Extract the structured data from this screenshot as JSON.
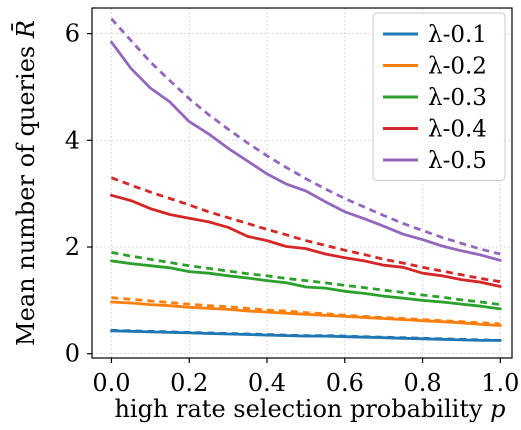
{
  "chart_data": {
    "type": "line",
    "xlabel": "high rate selection probability p",
    "xlabel_text": "high rate selection probability",
    "xlabel_var": "p",
    "ylabel": "Mean number of queries R̄",
    "ylabel_text": "Mean number of queries",
    "ylabel_var": "R̄",
    "xlim": [
      -0.05,
      1.03
    ],
    "ylim": [
      -0.08,
      6.48
    ],
    "x_ticks": [
      0.0,
      0.2,
      0.4,
      0.6,
      0.8,
      1.0
    ],
    "x_tick_labels": [
      "0.0",
      "0.2",
      "0.4",
      "0.6",
      "0.8",
      "1.0"
    ],
    "y_ticks": [
      0,
      2,
      4,
      6
    ],
    "y_tick_labels": [
      "0",
      "2",
      "4",
      "6"
    ],
    "grid": true,
    "legend_position": "top-right",
    "x": [
      0.0,
      0.05,
      0.1,
      0.15,
      0.2,
      0.25,
      0.3,
      0.35,
      0.4,
      0.45,
      0.5,
      0.55,
      0.6,
      0.65,
      0.7,
      0.75,
      0.8,
      0.85,
      0.9,
      0.95,
      1.0
    ],
    "series": [
      {
        "name": "λ-0.1",
        "color": "#1f77b4",
        "values": [
          0.43,
          0.42,
          0.41,
          0.4,
          0.39,
          0.38,
          0.37,
          0.36,
          0.35,
          0.34,
          0.33,
          0.33,
          0.32,
          0.31,
          0.3,
          0.29,
          0.28,
          0.27,
          0.26,
          0.25,
          0.25
        ],
        "dashed_values": [
          0.44,
          0.43,
          0.42,
          0.41,
          0.4,
          0.39,
          0.38,
          0.37,
          0.36,
          0.35,
          0.34,
          0.34,
          0.33,
          0.32,
          0.31,
          0.3,
          0.29,
          0.28,
          0.27,
          0.26,
          0.25
        ]
      },
      {
        "name": "λ-0.2",
        "color": "#ff7f0e",
        "values": [
          0.97,
          0.95,
          0.92,
          0.9,
          0.87,
          0.85,
          0.83,
          0.8,
          0.78,
          0.76,
          0.74,
          0.72,
          0.7,
          0.68,
          0.66,
          0.64,
          0.62,
          0.6,
          0.58,
          0.55,
          0.53
        ],
        "dashed_values": [
          1.05,
          1.02,
          0.99,
          0.96,
          0.93,
          0.9,
          0.88,
          0.85,
          0.82,
          0.8,
          0.77,
          0.75,
          0.72,
          0.7,
          0.68,
          0.66,
          0.64,
          0.62,
          0.6,
          0.58,
          0.56
        ]
      },
      {
        "name": "λ-0.3",
        "color": "#2ca02c",
        "values": [
          1.74,
          1.69,
          1.65,
          1.61,
          1.54,
          1.51,
          1.46,
          1.42,
          1.37,
          1.33,
          1.25,
          1.23,
          1.17,
          1.13,
          1.08,
          1.04,
          1.0,
          0.97,
          0.93,
          0.89,
          0.84
        ],
        "dashed_values": [
          1.9,
          1.83,
          1.77,
          1.71,
          1.65,
          1.6,
          1.55,
          1.5,
          1.46,
          1.41,
          1.37,
          1.33,
          1.28,
          1.24,
          1.19,
          1.15,
          1.1,
          1.06,
          1.01,
          0.97,
          0.92
        ]
      },
      {
        "name": "λ-0.4",
        "color": "#d62728",
        "values": [
          2.97,
          2.87,
          2.72,
          2.61,
          2.54,
          2.47,
          2.37,
          2.2,
          2.12,
          2.01,
          1.97,
          1.87,
          1.8,
          1.74,
          1.66,
          1.62,
          1.51,
          1.46,
          1.39,
          1.34,
          1.26
        ],
        "dashed_values": [
          3.3,
          3.16,
          3.03,
          2.91,
          2.79,
          2.66,
          2.55,
          2.44,
          2.33,
          2.23,
          2.12,
          2.03,
          1.94,
          1.86,
          1.77,
          1.7,
          1.62,
          1.55,
          1.48,
          1.41,
          1.35
        ]
      },
      {
        "name": "λ-0.5",
        "color": "#9467bd",
        "values": [
          5.84,
          5.35,
          4.98,
          4.72,
          4.35,
          4.12,
          3.85,
          3.61,
          3.37,
          3.18,
          3.05,
          2.85,
          2.66,
          2.53,
          2.39,
          2.24,
          2.14,
          2.02,
          1.93,
          1.85,
          1.75
        ],
        "dashed_values": [
          6.28,
          5.87,
          5.47,
          5.12,
          4.78,
          4.48,
          4.21,
          3.95,
          3.71,
          3.49,
          3.28,
          3.09,
          2.91,
          2.75,
          2.59,
          2.44,
          2.31,
          2.18,
          2.07,
          1.96,
          1.87
        ]
      }
    ]
  }
}
